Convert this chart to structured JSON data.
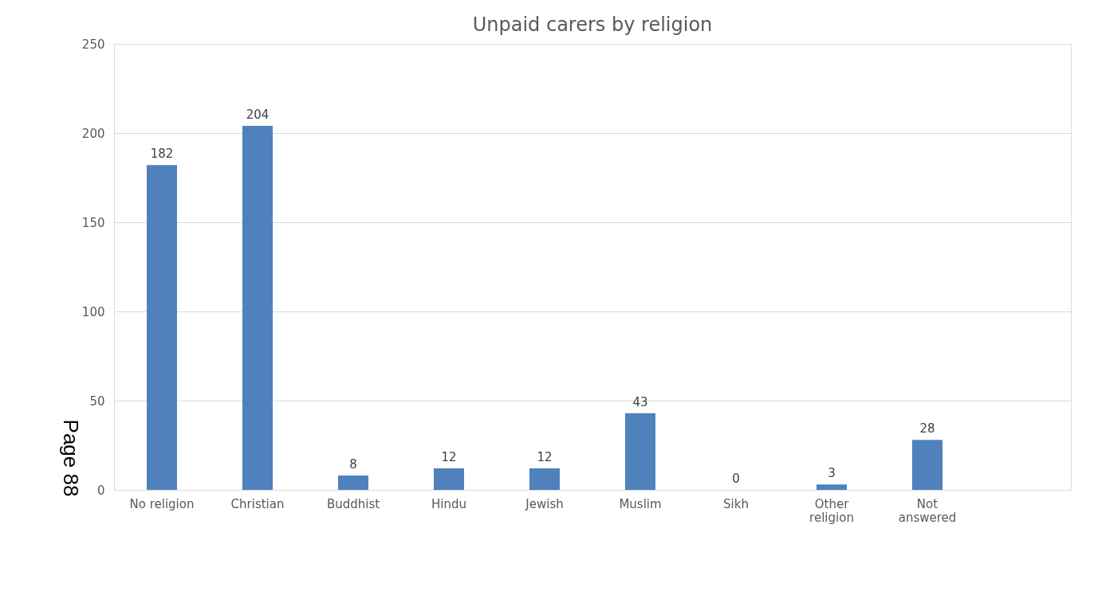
{
  "chart_data": {
    "type": "bar",
    "title": "Unpaid carers by religion",
    "categories": [
      "No religion",
      "Christian",
      "Buddhist",
      "Hindu",
      "Jewish",
      "Muslim",
      "Sikh",
      "Other religion",
      "Not answered",
      null
    ],
    "values": [
      182,
      204,
      8,
      12,
      12,
      43,
      0,
      3,
      28,
      null
    ],
    "color": "#4f81bd",
    "ylim": [
      0,
      250
    ],
    "yticks": [
      0,
      50,
      100,
      150,
      200,
      250
    ],
    "grid": "y",
    "data_labels": true,
    "annotations": [
      "Page 88"
    ]
  }
}
